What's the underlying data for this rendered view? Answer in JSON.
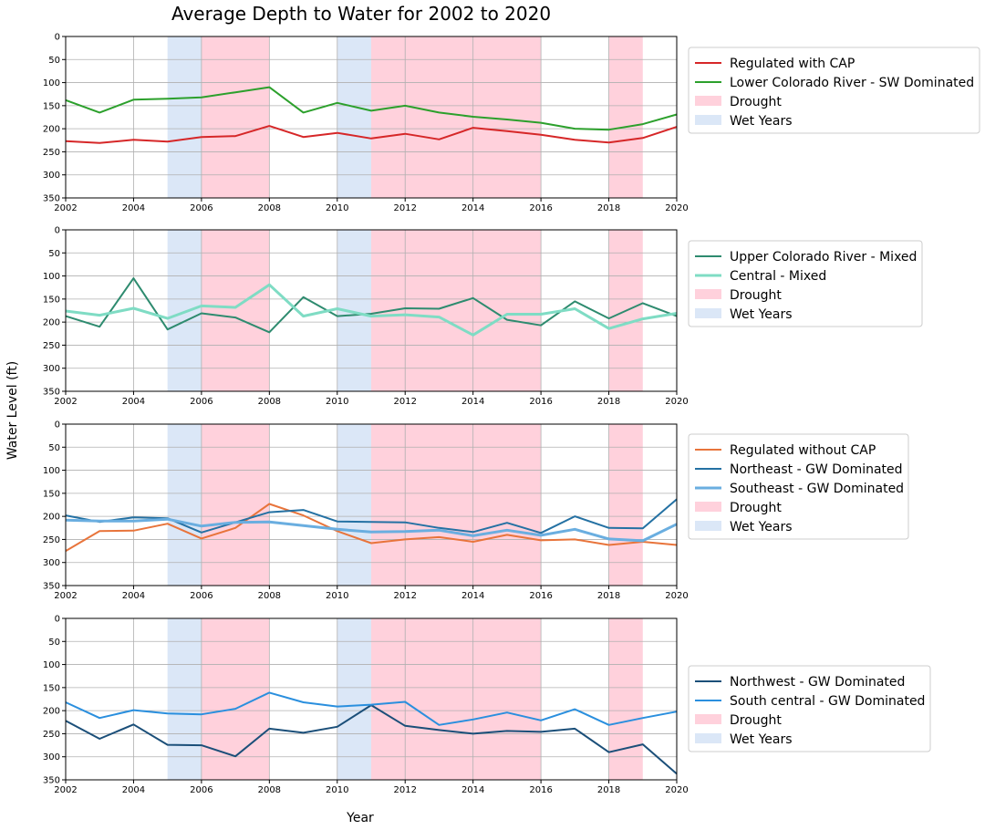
{
  "title": "Average Depth to Water for 2002 to 2020",
  "ylabel": "Water Level (ft)",
  "xlabel": "Year",
  "colors": {
    "drought": "#ffd1dc",
    "wet": "#dbe7f7",
    "grid": "#b0b0b0"
  },
  "chart_data": {
    "type": "line",
    "x": [
      2002,
      2003,
      2004,
      2005,
      2006,
      2007,
      2008,
      2009,
      2010,
      2011,
      2012,
      2013,
      2014,
      2015,
      2016,
      2017,
      2018,
      2019,
      2020
    ],
    "xlim": [
      2002,
      2020
    ],
    "ylim": [
      350,
      0
    ],
    "inverted_y": true,
    "x_ticks": [
      "2002",
      "2004",
      "2006",
      "2008",
      "2010",
      "2012",
      "2014",
      "2016",
      "2018",
      "2020"
    ],
    "y_ticks": [
      "0",
      "50",
      "100",
      "150",
      "200",
      "250",
      "300",
      "350"
    ],
    "drought_periods": [
      [
        2006,
        2008
      ],
      [
        2011,
        2016
      ],
      [
        2018,
        2019
      ]
    ],
    "wet_periods": [
      [
        2005,
        2006
      ],
      [
        2010,
        2011
      ]
    ],
    "shading_labels": {
      "drought": "Drought",
      "wet": "Wet Years"
    },
    "grid": true,
    "legend_position": "outside-right",
    "panels": [
      {
        "series": [
          {
            "name": "Regulated with CAP",
            "color": "#d62728",
            "width": 2,
            "values": [
              227,
              231,
              224,
              228,
              218,
              216,
              194,
              218,
              209,
              221,
              211,
              223,
              198,
              205,
              213,
              224,
              230,
              220,
              196
            ]
          },
          {
            "name": "Lower Colorado River - SW Dominated",
            "color": "#2ca02c",
            "width": 2,
            "values": [
              138,
              165,
              137,
              135,
              132,
              121,
              110,
              165,
              144,
              161,
              150,
              165,
              174,
              180,
              187,
              200,
              202,
              190,
              169
            ]
          }
        ]
      },
      {
        "series": [
          {
            "name": "Upper Colorado River - Mixed",
            "color": "#2e8b6f",
            "width": 2,
            "values": [
              187,
              210,
              105,
              216,
              181,
              190,
              222,
              146,
              187,
              182,
              170,
              171,
              148,
              195,
              207,
              155,
              192,
              159,
              187
            ]
          },
          {
            "name": "Central - Mixed",
            "color": "#7fdcc4",
            "width": 3,
            "values": [
              176,
              185,
              170,
              192,
              165,
              168,
              119,
              187,
              171,
              187,
              184,
              189,
              228,
              183,
              183,
              171,
              214,
              193,
              181
            ]
          }
        ]
      },
      {
        "series": [
          {
            "name": "Regulated without CAP",
            "color": "#e8743b",
            "width": 2,
            "values": [
              275,
              232,
              231,
              216,
              248,
              225,
              173,
              198,
              232,
              258,
              250,
              245,
              255,
              240,
              252,
              250,
              262,
              255,
              262
            ]
          },
          {
            "name": "Northeast - GW Dominated",
            "color": "#2471a3",
            "width": 2,
            "values": [
              198,
              212,
              202,
              204,
              235,
              213,
              191,
              186,
              211,
              212,
              213,
              225,
              234,
              214,
              236,
              200,
              225,
              226,
              163
            ]
          },
          {
            "name": "Southeast - GW Dominated",
            "color": "#6aaee0",
            "width": 3,
            "values": [
              208,
              210,
              210,
              206,
              221,
              213,
              212,
              220,
              228,
              234,
              233,
              230,
              242,
              230,
              241,
              228,
              249,
              253,
              217
            ]
          }
        ]
      },
      {
        "series": [
          {
            "name": "Northwest - GW Dominated",
            "color": "#1b4f79",
            "width": 2,
            "values": [
              222,
              261,
              230,
              274,
              275,
              299,
              239,
              248,
              235,
              188,
              233,
              242,
              250,
              244,
              246,
              239,
              290,
              273,
              337
            ]
          },
          {
            "name": "South central - GW Dominated",
            "color": "#2a8fde",
            "width": 2,
            "values": [
              182,
              216,
              199,
              206,
              208,
              196,
              161,
              182,
              191,
              187,
              181,
              231,
              219,
              204,
              221,
              197,
              231,
              216,
              202
            ]
          }
        ]
      }
    ]
  }
}
